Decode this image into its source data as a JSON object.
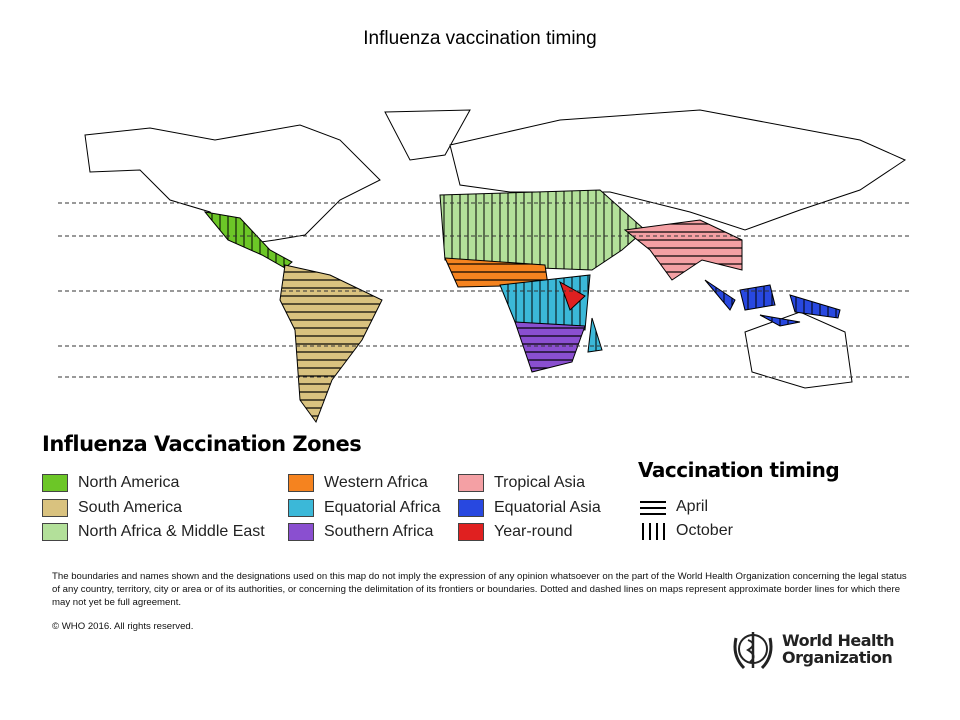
{
  "title": "Influenza vaccination timing",
  "legend": {
    "zones_title": "Influenza Vaccination Zones",
    "zones": [
      {
        "label": "North America",
        "color": "#6cc627",
        "timing": "October"
      },
      {
        "label": "South America",
        "color": "#d9c27f",
        "timing": "April"
      },
      {
        "label": "North Africa & Middle East",
        "color": "#b3e09a",
        "timing": "October"
      },
      {
        "label": "Western Africa",
        "color": "#f5831f",
        "timing": "April"
      },
      {
        "label": "Equatorial Africa",
        "color": "#3bb8d8",
        "timing": "October"
      },
      {
        "label": "Southern Africa",
        "color": "#8a4fd0",
        "timing": "April"
      },
      {
        "label": "Tropical Asia",
        "color": "#f4a0a4",
        "timing": "April"
      },
      {
        "label": "Equatorial Asia",
        "color": "#2848e0",
        "timing": "October"
      },
      {
        "label": "Year-round",
        "color": "#e02020",
        "timing": ""
      }
    ],
    "timing_title": "Vaccination timing",
    "timing": [
      {
        "label": "April",
        "pattern": "horizontal-lines"
      },
      {
        "label": "October",
        "pattern": "vertical-lines"
      }
    ]
  },
  "disclaimer": "The boundaries and names shown and the designations used on this map do not imply the expression of any opinion whatsoever on the part of the World Health Organization concerning the legal status of any country, territory, city or area or of its authorities, or concerning the delimitation of its frontiers or boundaries. Dotted and dashed lines on maps represent approximate border lines for which there may not yet be full agreement.",
  "copyright": "© WHO 2016. All rights reserved.",
  "logo": {
    "text_line1": "World Health",
    "text_line2": "Organization"
  }
}
